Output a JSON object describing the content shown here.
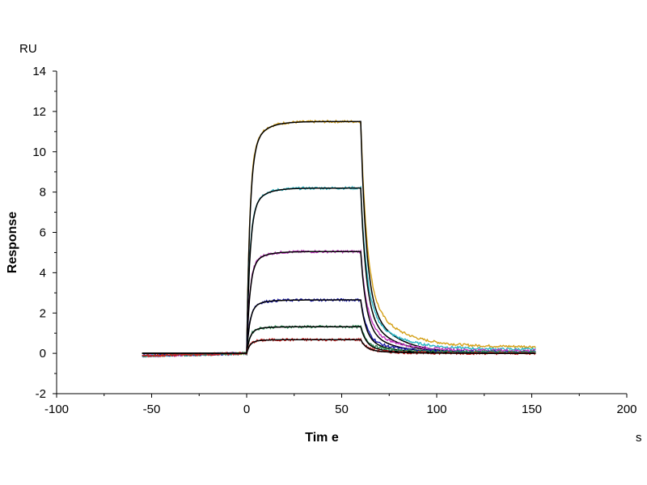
{
  "chart_data": {
    "type": "line",
    "xlabel": "Tim e",
    "ylabel": "Response",
    "x_unit": "s",
    "y_unit": "RU",
    "xlim": [
      -100,
      200
    ],
    "ylim": [
      -2,
      14
    ],
    "x_ticks": [
      -100,
      -50,
      0,
      50,
      100,
      150,
      200
    ],
    "y_ticks": [
      -2,
      0,
      2,
      4,
      6,
      8,
      10,
      12,
      14
    ],
    "grid": false,
    "legend": "none",
    "model": {
      "baseline_start": -55,
      "injection_start": 0,
      "injection_end": 60,
      "dissociation_end": 152
    },
    "series": [
      {
        "color": "#d4a017",
        "fit_color": "#000000",
        "plateau": 11.5,
        "tail": 0.25
      },
      {
        "color": "#2ab5c4",
        "fit_color": "#000000",
        "plateau": 8.2,
        "tail": 0.15
      },
      {
        "color": "#c035c0",
        "fit_color": "#000000",
        "plateau": 5.05,
        "tail": 0.1
      },
      {
        "color": "#1a1aa8",
        "fit_color": "#000000",
        "plateau": 2.65,
        "tail": 0.05
      },
      {
        "color": "#2e8b57",
        "fit_color": "#000000",
        "plateau": 1.32,
        "tail": 0.05
      },
      {
        "color": "#d02020",
        "fit_color": "#000000",
        "plateau": 0.68,
        "tail": 0.0
      }
    ]
  }
}
